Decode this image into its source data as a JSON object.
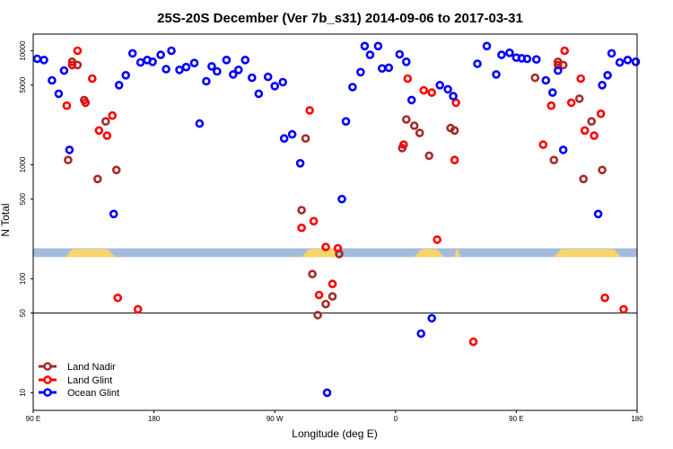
{
  "chart_data": {
    "type": "scatter",
    "title": "25S-20S December (Ver 7b_s31)   2014-09-06 to 2017-03-31",
    "xlabel": "Longitude (deg E)",
    "ylabel": "N Total",
    "yscale": "log",
    "ylim": [
      7,
      14000
    ],
    "xlim": [
      0,
      450
    ],
    "x_ticks": [
      {
        "pos": 0,
        "label": "90 E"
      },
      {
        "pos": 90,
        "label": "180"
      },
      {
        "pos": 180,
        "label": "90 W"
      },
      {
        "pos": 270,
        "label": "0"
      },
      {
        "pos": 360,
        "label": "90 E"
      },
      {
        "pos": 450,
        "label": "180"
      }
    ],
    "y_ticks": [
      {
        "value": 10,
        "label": "10"
      },
      {
        "value": 50,
        "label": "50"
      },
      {
        "value": 100,
        "label": "100"
      },
      {
        "value": 500,
        "label": "500"
      },
      {
        "value": 1000,
        "label": "1000"
      },
      {
        "value": 5000,
        "label": "5000"
      },
      {
        "value": 10000,
        "label": "10000"
      }
    ],
    "reference_line": 50,
    "land_band": {
      "y_top": 185,
      "y_bottom": 155,
      "ocean_color": "#a4bcdc",
      "land_color": "#f8d56b",
      "land_segments": [
        [
          24,
          61
        ],
        [
          200,
          229
        ],
        [
          284,
          306
        ],
        [
          314,
          318
        ],
        [
          388,
          438
        ]
      ]
    },
    "series": [
      {
        "name": "Land Nadir",
        "color": "#a52a2a",
        "points": [
          [
            26,
            1100
          ],
          [
            29,
            8000
          ],
          [
            33,
            7500
          ],
          [
            38,
            3700
          ],
          [
            48,
            750
          ],
          [
            54,
            2400
          ],
          [
            62,
            900
          ],
          [
            200,
            400
          ],
          [
            203,
            1700
          ],
          [
            208,
            110
          ],
          [
            212,
            48
          ],
          [
            218,
            60
          ],
          [
            223,
            70
          ],
          [
            228,
            165
          ],
          [
            275,
            1400
          ],
          [
            278,
            2500
          ],
          [
            284,
            2200
          ],
          [
            288,
            1900
          ],
          [
            295,
            1200
          ],
          [
            311,
            2100
          ],
          [
            314,
            2000
          ],
          [
            374,
            5800
          ],
          [
            388,
            1100
          ],
          [
            391,
            8000
          ],
          [
            395,
            7500
          ],
          [
            407,
            3800
          ],
          [
            410,
            750
          ],
          [
            416,
            2400
          ],
          [
            424,
            900
          ]
        ]
      },
      {
        "name": "Land Glint",
        "color": "#ff0000",
        "points": [
          [
            25,
            3300
          ],
          [
            29,
            7500
          ],
          [
            33,
            10000
          ],
          [
            39,
            3500
          ],
          [
            44,
            5700
          ],
          [
            49,
            2000
          ],
          [
            55,
            1800
          ],
          [
            59,
            2700
          ],
          [
            63,
            68
          ],
          [
            78,
            54
          ],
          [
            200,
            280
          ],
          [
            206,
            3000
          ],
          [
            209,
            320
          ],
          [
            213,
            72
          ],
          [
            218,
            190
          ],
          [
            223,
            90
          ],
          [
            227,
            185
          ],
          [
            276,
            1500
          ],
          [
            279,
            5700
          ],
          [
            291,
            4500
          ],
          [
            297,
            4300
          ],
          [
            301,
            220
          ],
          [
            314,
            1100
          ],
          [
            315,
            3500
          ],
          [
            328,
            28
          ],
          [
            380,
            1500
          ],
          [
            386,
            3300
          ],
          [
            391,
            7500
          ],
          [
            396,
            10000
          ],
          [
            401,
            3500
          ],
          [
            408,
            5700
          ],
          [
            411,
            2000
          ],
          [
            418,
            1800
          ],
          [
            423,
            2800
          ],
          [
            426,
            68
          ],
          [
            440,
            54
          ]
        ]
      },
      {
        "name": "Ocean Glint",
        "color": "#0000ff",
        "points": [
          [
            3,
            8500
          ],
          [
            8,
            8300
          ],
          [
            14,
            5500
          ],
          [
            19,
            4200
          ],
          [
            23,
            6700
          ],
          [
            27,
            1350
          ],
          [
            60,
            370
          ],
          [
            64,
            5000
          ],
          [
            69,
            6100
          ],
          [
            74,
            9500
          ],
          [
            80,
            7900
          ],
          [
            85,
            8300
          ],
          [
            89,
            8000
          ],
          [
            95,
            9200
          ],
          [
            99,
            6900
          ],
          [
            103,
            10000
          ],
          [
            109,
            6800
          ],
          [
            114,
            7200
          ],
          [
            120,
            7800
          ],
          [
            124,
            2300
          ],
          [
            129,
            5400
          ],
          [
            133,
            7300
          ],
          [
            137,
            6600
          ],
          [
            144,
            8300
          ],
          [
            149,
            6200
          ],
          [
            153,
            6800
          ],
          [
            158,
            8300
          ],
          [
            163,
            5800
          ],
          [
            168,
            4200
          ],
          [
            175,
            5900
          ],
          [
            180,
            4900
          ],
          [
            186,
            5300
          ],
          [
            187,
            1700
          ],
          [
            193,
            1850
          ],
          [
            199,
            1030
          ],
          [
            230,
            500
          ],
          [
            233,
            2400
          ],
          [
            238,
            4800
          ],
          [
            244,
            6500
          ],
          [
            247,
            11000
          ],
          [
            251,
            9200
          ],
          [
            257,
            11000
          ],
          [
            260,
            7000
          ],
          [
            265,
            7100
          ],
          [
            273,
            9300
          ],
          [
            278,
            8000
          ],
          [
            282,
            3700
          ],
          [
            289,
            33
          ],
          [
            297,
            45
          ],
          [
            303,
            5000
          ],
          [
            309,
            4600
          ],
          [
            313,
            4000
          ],
          [
            331,
            7700
          ],
          [
            338,
            11000
          ],
          [
            345,
            6200
          ],
          [
            349,
            9200
          ],
          [
            355,
            9600
          ],
          [
            360,
            8700
          ],
          [
            364,
            8600
          ],
          [
            368,
            8500
          ],
          [
            375,
            8400
          ],
          [
            382,
            5500
          ],
          [
            387,
            4300
          ],
          [
            391,
            6700
          ],
          [
            395,
            1350
          ],
          [
            421,
            370
          ],
          [
            424,
            5000
          ],
          [
            428,
            6100
          ],
          [
            431,
            9500
          ],
          [
            437,
            7900
          ],
          [
            443,
            8300
          ],
          [
            449,
            8000
          ],
          [
            219,
            10
          ]
        ]
      }
    ]
  }
}
